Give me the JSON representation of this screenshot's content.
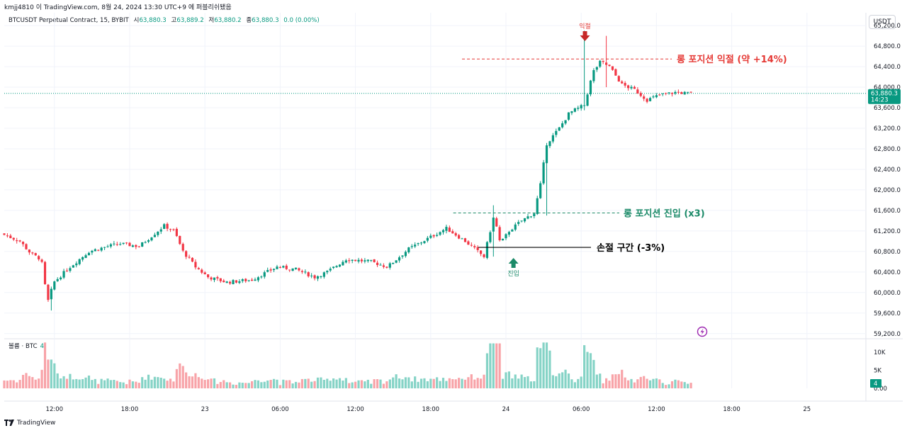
{
  "caption": "kmjj4810 이 TradingView.com, 8월 24, 2024 13:30 UTC+9 에 퍼블리쉬됐음",
  "symbol": {
    "title": "BTCUSDT Perpetual Contract, 15, BYBIT",
    "open_label": "시",
    "open": "63,880.3",
    "high_label": "고",
    "high": "63,889.2",
    "low_label": "저",
    "low": "63,880.2",
    "close_label": "종",
    "close": "63,880.3",
    "change": "0.0 (0.00%)"
  },
  "currency_button": "USDT",
  "volume_panel": {
    "label": "볼륨 · BTC",
    "value": "4"
  },
  "footer": {
    "brand": "TradingView"
  },
  "colors": {
    "up": "#089981",
    "down": "#f23645",
    "up_volume": "#85d3c6",
    "down_volume": "#f8a3a8",
    "annotation_red": "#e53935",
    "annotation_green": "#1b8a68",
    "price_badge": "#089981",
    "alert_icon": "#9c27b0"
  },
  "chart_data": {
    "type": "candlestick",
    "y_ticks": [
      "65,200.0",
      "64,800.0",
      "64,400.0",
      "64,000.0",
      "63,600.0",
      "63,200.0",
      "62,800.0",
      "62,400.0",
      "62,000.0",
      "61,600.0",
      "61,200.0",
      "60,800.0",
      "60,400.0",
      "60,000.0",
      "59,600.0",
      "59,200.0"
    ],
    "y_tick_values": [
      65200,
      64800,
      64400,
      64000,
      63600,
      63200,
      62800,
      62400,
      62000,
      61600,
      61200,
      60800,
      60400,
      60000,
      59600,
      59200
    ],
    "ylim": [
      59100,
      65450
    ],
    "x_ticks": [
      "12:00",
      "18:00",
      "23",
      "06:00",
      "12:00",
      "18:00",
      "24",
      "06:00",
      "12:00",
      "18:00",
      "25"
    ],
    "x_tick_hours": [
      12,
      18,
      24,
      30,
      36,
      42,
      48,
      54,
      60,
      66,
      72
    ],
    "x_range_hours": [
      8,
      76.7
    ],
    "volume_ticks": [
      "10K",
      "5K",
      "0.00"
    ],
    "volume_tick_values": [
      10000,
      5000,
      0
    ],
    "volume_max": 13000,
    "current_price": {
      "label": "63,880.3",
      "countdown": "14:23",
      "value": 63880.3
    },
    "current_volume": {
      "label": "4",
      "value": 4
    },
    "path_points": [
      {
        "t": 8.0,
        "p": 61150
      },
      {
        "t": 9.5,
        "p": 61000
      },
      {
        "t": 10.4,
        "p": 60750
      },
      {
        "t": 11.2,
        "p": 60650
      },
      {
        "t": 11.7,
        "p": 59800
      },
      {
        "t": 12.2,
        "p": 60200
      },
      {
        "t": 13.5,
        "p": 60500
      },
      {
        "t": 15.0,
        "p": 60800
      },
      {
        "t": 16.5,
        "p": 60900
      },
      {
        "t": 17.5,
        "p": 60950
      },
      {
        "t": 19.0,
        "p": 60900
      },
      {
        "t": 20.0,
        "p": 61100
      },
      {
        "t": 21.0,
        "p": 61300
      },
      {
        "t": 21.8,
        "p": 61200
      },
      {
        "t": 22.5,
        "p": 60800
      },
      {
        "t": 23.5,
        "p": 60500
      },
      {
        "t": 24.5,
        "p": 60300
      },
      {
        "t": 26.0,
        "p": 60200
      },
      {
        "t": 28.0,
        "p": 60250
      },
      {
        "t": 30.0,
        "p": 60500
      },
      {
        "t": 31.5,
        "p": 60450
      },
      {
        "t": 33.0,
        "p": 60300
      },
      {
        "t": 34.0,
        "p": 60400
      },
      {
        "t": 35.5,
        "p": 60650
      },
      {
        "t": 37.5,
        "p": 60600
      },
      {
        "t": 38.8,
        "p": 60500
      },
      {
        "t": 40.5,
        "p": 60850
      },
      {
        "t": 42.0,
        "p": 61050
      },
      {
        "t": 43.5,
        "p": 61250
      },
      {
        "t": 45.0,
        "p": 61000
      },
      {
        "t": 46.5,
        "p": 60700
      },
      {
        "t": 47.3,
        "p": 61500
      },
      {
        "t": 47.8,
        "p": 60950
      },
      {
        "t": 48.5,
        "p": 61200
      },
      {
        "t": 49.5,
        "p": 61400
      },
      {
        "t": 50.5,
        "p": 61550
      },
      {
        "t": 51.0,
        "p": 62100
      },
      {
        "t": 51.5,
        "p": 62900
      },
      {
        "t": 52.5,
        "p": 63200
      },
      {
        "t": 53.3,
        "p": 63500
      },
      {
        "t": 54.5,
        "p": 63650
      },
      {
        "t": 55.2,
        "p": 64300
      },
      {
        "t": 55.8,
        "p": 64500
      },
      {
        "t": 56.5,
        "p": 64400
      },
      {
        "t": 57.5,
        "p": 64050
      },
      {
        "t": 58.5,
        "p": 63950
      },
      {
        "t": 59.5,
        "p": 63750
      },
      {
        "t": 60.5,
        "p": 63850
      },
      {
        "t": 61.8,
        "p": 63900
      },
      {
        "t": 62.8,
        "p": 63880
      }
    ],
    "wick_highlights": [
      {
        "t": 54.3,
        "high": 65100,
        "low": 63550
      },
      {
        "t": 55.9,
        "high": 65000,
        "low": 64000
      },
      {
        "t": 51.2,
        "high": 62300,
        "low": 61500
      },
      {
        "t": 47.0,
        "high": 61700,
        "low": 60700
      },
      {
        "t": 11.8,
        "high": 60000,
        "low": 59650
      }
    ],
    "annotations": {
      "take_profit_marker": "익절",
      "take_profit_line": {
        "text": "롱 포지션 익절 (약 +14%)",
        "price": 64550,
        "t_start": 44.5
      },
      "entry_line": {
        "text": "롱 포지션 진입  (x3)",
        "price": 61550,
        "t_start": 43.8
      },
      "stop_line": {
        "text": "손절 구간  (-3%)",
        "price": 60880,
        "t_start": 45.8
      },
      "entry_marker": "진입",
      "entry_marker_t": 48.6,
      "take_profit_marker_t": 54.3
    }
  }
}
